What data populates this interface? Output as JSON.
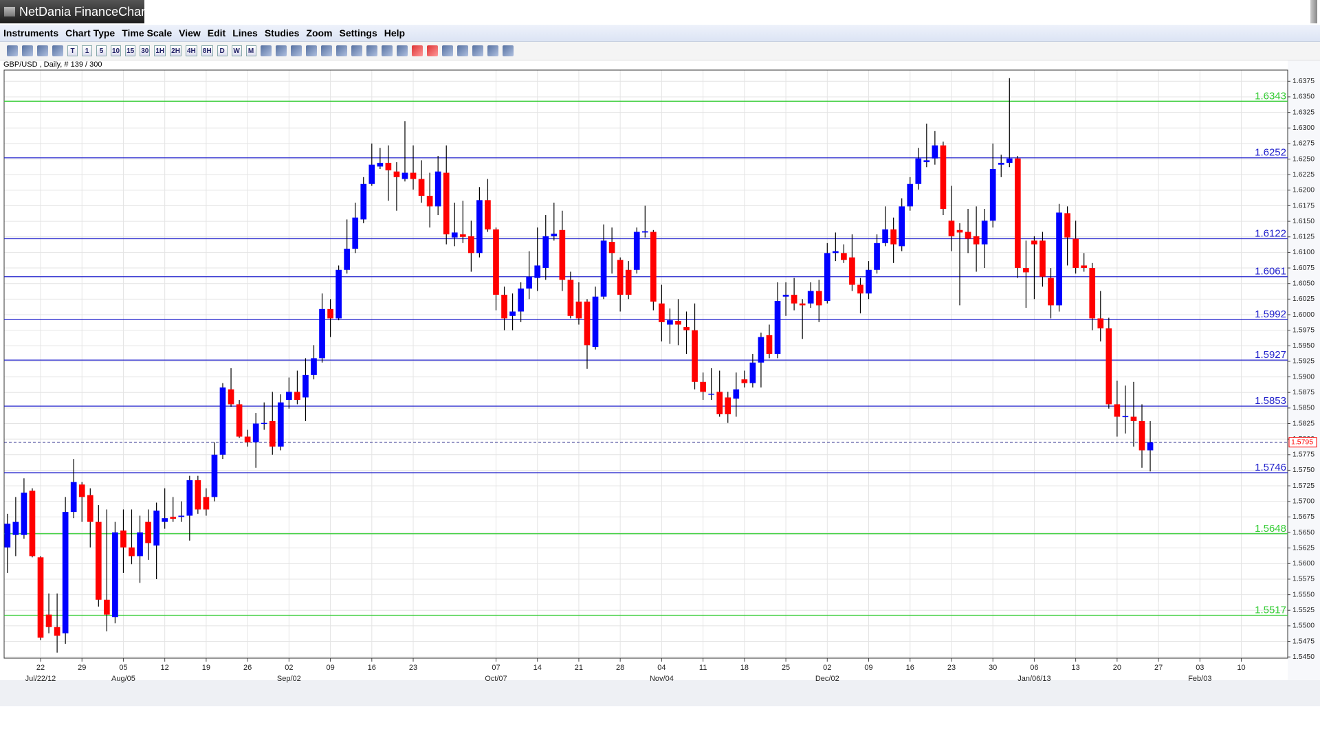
{
  "window": {
    "title": "NetDania FinanceChar"
  },
  "menu": [
    "Instruments",
    "Chart Type",
    "Time Scale",
    "View",
    "Edit",
    "Lines",
    "Studies",
    "Zoom",
    "Settings",
    "Help"
  ],
  "toolbar": [
    "T",
    "1",
    "5",
    "10",
    "15",
    "30",
    "1H",
    "2H",
    "4H",
    "8H",
    "D",
    "W",
    "M"
  ],
  "chart_data": {
    "type": "candlestick",
    "subtitle": "GBP/USD , Daily, # 139 / 300",
    "up_color": "#0000ff",
    "down_color": "#ff0000",
    "grid": true,
    "xlim": [
      -0.4,
      154.6
    ],
    "ylim": [
      1.5448,
      1.6393
    ],
    "xticks": [
      {
        "value": 4,
        "label": "22"
      },
      {
        "value": 9,
        "label": "29"
      },
      {
        "value": 14,
        "label": "05"
      },
      {
        "value": 19,
        "label": "12"
      },
      {
        "value": 24,
        "label": "19"
      },
      {
        "value": 29,
        "label": "26"
      },
      {
        "value": 34,
        "label": "02"
      },
      {
        "value": 39,
        "label": "09"
      },
      {
        "value": 44,
        "label": "16"
      },
      {
        "value": 49,
        "label": "23"
      },
      {
        "value": 59,
        "label": "07"
      },
      {
        "value": 64,
        "label": "14"
      },
      {
        "value": 69,
        "label": "21"
      },
      {
        "value": 74,
        "label": "28"
      },
      {
        "value": 79,
        "label": "04"
      },
      {
        "value": 84,
        "label": "11"
      },
      {
        "value": 89,
        "label": "18"
      },
      {
        "value": 94,
        "label": "25"
      },
      {
        "value": 99,
        "label": "02"
      },
      {
        "value": 104,
        "label": "09"
      },
      {
        "value": 109,
        "label": "16"
      },
      {
        "value": 114,
        "label": "23"
      },
      {
        "value": 119,
        "label": "30"
      },
      {
        "value": 124,
        "label": "06"
      },
      {
        "value": 129,
        "label": "13"
      },
      {
        "value": 134,
        "label": "20"
      },
      {
        "value": 139,
        "label": "27"
      },
      {
        "value": 144,
        "label": "03"
      },
      {
        "value": 149,
        "label": "10"
      }
    ],
    "xticks_month": [
      {
        "value": 4,
        "label": "Jul/22/12"
      },
      {
        "value": 14,
        "label": "Aug/05"
      },
      {
        "value": 34,
        "label": "Sep/02"
      },
      {
        "value": 59,
        "label": "Oct/07"
      },
      {
        "value": 79,
        "label": "Nov/04"
      },
      {
        "value": 99,
        "label": "Dec/02"
      },
      {
        "value": 124,
        "label": "Jan/06/13"
      },
      {
        "value": 144,
        "label": "Feb/03"
      }
    ],
    "yticks": [
      1.6375,
      {
        "value": 1.635,
        "label": "1.6350"
      },
      1.6325,
      {
        "value": 1.63,
        "label": "1.6300"
      },
      1.6275,
      {
        "value": 1.625,
        "label": "1.6250"
      },
      1.6225,
      {
        "value": 1.62,
        "label": "1.6200"
      },
      1.6175,
      {
        "value": 1.615,
        "label": "1.6150"
      },
      1.6125,
      {
        "value": 1.61,
        "label": "1.6100"
      },
      1.6075,
      {
        "value": 1.605,
        "label": "1.6050"
      },
      1.6025,
      {
        "value": 1.6,
        "label": "1.6000"
      },
      1.5975,
      {
        "value": 1.595,
        "label": "1.5950"
      },
      1.5925,
      {
        "value": 1.59,
        "label": "1.5900"
      },
      1.5875,
      {
        "value": 1.585,
        "label": "1.5850"
      },
      1.5825,
      {
        "value": 1.58,
        "label": "1.5800"
      },
      1.5775,
      {
        "value": 1.575,
        "label": "1.5750"
      },
      1.5725,
      {
        "value": 1.57,
        "label": "1.5700"
      },
      1.5675,
      {
        "value": 1.565,
        "label": "1.5650"
      },
      1.5625,
      {
        "value": 1.56,
        "label": "1.5600"
      },
      1.5575,
      {
        "value": 1.555,
        "label": "1.5550"
      },
      1.5525,
      {
        "value": 1.55,
        "label": "1.5500"
      },
      1.5475,
      {
        "value": 1.545,
        "label": "1.5450"
      }
    ],
    "levels": [
      {
        "value": 1.6343,
        "color": "#33cc33"
      },
      {
        "value": 1.6252,
        "color": "#2222cc"
      },
      {
        "value": 1.6122,
        "color": "#2222cc"
      },
      {
        "value": 1.6061,
        "color": "#2222cc"
      },
      {
        "value": 1.5992,
        "color": "#2222cc"
      },
      {
        "value": 1.5927,
        "color": "#2222cc"
      },
      {
        "value": 1.5853,
        "color": "#2222cc"
      },
      {
        "value": 1.5746,
        "color": "#2222cc"
      },
      {
        "value": 1.5648,
        "color": "#33cc33"
      },
      {
        "value": 1.5517,
        "color": "#33cc33"
      }
    ],
    "last": 1.5795,
    "last_color": "#ff0000",
    "open": [
      1.5626,
      1.5646,
      1.5646,
      1.5717,
      1.561,
      1.5518,
      1.5498,
      1.5488,
      1.5683,
      1.5727,
      1.571,
      1.5667,
      1.5542,
      1.5514,
      1.5653,
      1.5626,
      1.5612,
      1.5667,
      1.5629,
      1.5667,
      1.5675,
      1.5675,
      1.5677,
      1.5734,
      1.5707,
      1.5707,
      1.5775,
      1.588,
      1.5856,
      1.5804,
      1.5795,
      1.5825,
      1.5829,
      1.5788,
      1.5863,
      1.5876,
      1.5867,
      1.5903,
      1.593,
      1.6009,
      1.5994,
      1.6072,
      1.6106,
      1.6153,
      1.621,
      1.6238,
      1.6244,
      1.623,
      1.6218,
      1.6228,
      1.6218,
      1.6191,
      1.6174,
      1.6228,
      1.6124,
      1.6129,
      1.6126,
      1.6099,
      1.6184,
      1.6137,
      1.6032,
      1.5998,
      1.6005,
      1.6042,
      1.6059,
      1.6075,
      1.6126,
      1.6136,
      1.6056,
      1.6021,
      1.6021,
      1.5948,
      1.6029,
      1.6117,
      1.6088,
      1.6072,
      1.6072,
      1.6132,
      1.6133,
      1.6018,
      1.5984,
      1.599,
      1.598,
      1.5975,
      1.5892,
      1.5872,
      1.5876,
      1.5867,
      1.5865,
      1.5896,
      1.589,
      1.5923,
      1.5967,
      1.5937,
      1.6029,
      1.6032,
      1.6018,
      1.6018,
      1.6038,
      1.6022,
      1.6099,
      1.6099,
      1.6092,
      1.6048,
      1.6034,
      1.6072,
      1.6115,
      1.6137,
      1.611,
      1.6174,
      1.621,
      1.6245,
      1.6251,
      1.6272,
      1.6151,
      1.6136,
      1.6133,
      1.6126,
      1.6113,
      1.6151,
      1.6241,
      1.6244,
      1.6251,
      1.6075,
      1.6119,
      1.6119,
      1.6059,
      1.6015,
      1.6163,
      1.6122,
      1.6079,
      1.6075,
      1.5994,
      1.5978,
      1.5856,
      1.5836,
      1.5836,
      1.5829,
      1.5782
    ],
    "high": [
      1.568,
      1.5707,
      1.5737,
      1.5721,
      1.5612,
      1.5552,
      1.5552,
      1.5707,
      1.5768,
      1.5731,
      1.5721,
      1.5694,
      1.5687,
      1.5667,
      1.5687,
      1.5687,
      1.5677,
      1.5687,
      1.5698,
      1.5721,
      1.5707,
      1.57,
      1.5741,
      1.5741,
      1.5721,
      1.5795,
      1.589,
      1.5914,
      1.5863,
      1.5815,
      1.5842,
      1.5859,
      1.5876,
      1.5872,
      1.5899,
      1.591,
      1.593,
      1.5951,
      1.6034,
      1.6025,
      1.6079,
      1.6153,
      1.618,
      1.6221,
      1.6275,
      1.6268,
      1.6272,
      1.6245,
      1.6311,
      1.6272,
      1.6248,
      1.6228,
      1.6255,
      1.6272,
      1.618,
      1.6183,
      1.6151,
      1.6205,
      1.6218,
      1.614,
      1.6045,
      1.6034,
      1.6052,
      1.6102,
      1.614,
      1.616,
      1.618,
      1.6167,
      1.6069,
      1.6052,
      1.6025,
      1.6045,
      1.6145,
      1.614,
      1.6092,
      1.6086,
      1.614,
      1.6175,
      1.6136,
      1.6048,
      1.601,
      1.6025,
      1.6005,
      1.6018,
      1.5907,
      1.5914,
      1.591,
      1.5876,
      1.5907,
      1.591,
      1.5937,
      1.5971,
      1.5984,
      1.6052,
      1.6052,
      1.6059,
      1.6025,
      1.6052,
      1.6056,
      1.6115,
      1.6132,
      1.6113,
      1.6129,
      1.6059,
      1.6086,
      1.6129,
      1.6174,
      1.6156,
      1.6187,
      1.6221,
      1.6268,
      1.6307,
      1.6295,
      1.6278,
      1.6207,
      1.6147,
      1.617,
      1.6174,
      1.617,
      1.6275,
      1.6257,
      1.638,
      1.6255,
      1.6119,
      1.6126,
      1.6133,
      1.6075,
      1.6178,
      1.6174,
      1.6151,
      1.6099,
      1.6083,
      1.6038,
      1.5995,
      1.5894,
      1.5886,
      1.5892,
      1.5856,
      1.5829
    ],
    "low": [
      1.5585,
      1.5612,
      1.564,
      1.561,
      1.5477,
      1.5488,
      1.5457,
      1.5471,
      1.5673,
      1.5667,
      1.5626,
      1.5531,
      1.5491,
      1.5504,
      1.5585,
      1.5599,
      1.5569,
      1.5606,
      1.5575,
      1.5656,
      1.5667,
      1.5667,
      1.5637,
      1.568,
      1.5677,
      1.57,
      1.5768,
      1.5852,
      1.5802,
      1.5788,
      1.5754,
      1.5815,
      1.5775,
      1.5782,
      1.5849,
      1.5856,
      1.5829,
      1.5896,
      1.5923,
      1.5964,
      1.5991,
      1.6066,
      1.6099,
      1.6147,
      1.6207,
      1.6234,
      1.6183,
      1.6167,
      1.6214,
      1.6201,
      1.618,
      1.614,
      1.616,
      1.6113,
      1.611,
      1.6115,
      1.6069,
      1.6092,
      1.6133,
      1.6007,
      1.5975,
      1.5975,
      1.5988,
      1.6025,
      1.6038,
      1.6056,
      1.6119,
      1.6038,
      1.5994,
      1.5984,
      1.5913,
      1.5944,
      1.6025,
      1.6066,
      1.6005,
      1.6025,
      1.6066,
      1.6124,
      1.6007,
      1.5957,
      1.5953,
      1.5951,
      1.5937,
      1.588,
      1.5863,
      1.5863,
      1.5836,
      1.5826,
      1.5836,
      1.5883,
      1.5883,
      1.5883,
      1.593,
      1.593,
      1.5998,
      1.6007,
      1.5961,
      1.6011,
      1.5988,
      1.6018,
      1.6086,
      1.6083,
      1.6038,
      1.6002,
      1.6025,
      1.6066,
      1.611,
      1.6083,
      1.6102,
      1.6167,
      1.6201,
      1.6237,
      1.6241,
      1.616,
      1.6102,
      1.6015,
      1.6099,
      1.6069,
      1.6075,
      1.614,
      1.6221,
      1.6237,
      1.6059,
      1.6011,
      1.6025,
      1.6045,
      1.5994,
      1.6005,
      1.6079,
      1.6066,
      1.6069,
      1.5975,
      1.5957,
      1.5849,
      1.5804,
      1.5809,
      1.5788,
      1.5754,
      1.5748
    ],
    "close": [
      1.5664,
      1.5667,
      1.5714,
      1.5612,
      1.5481,
      1.5498,
      1.5484,
      1.5683,
      1.5731,
      1.5707,
      1.5667,
      1.5542,
      1.5518,
      1.565,
      1.5626,
      1.5612,
      1.565,
      1.5633,
      1.5685,
      1.5673,
      1.5672,
      1.5677,
      1.5734,
      1.5687,
      1.5687,
      1.5775,
      1.5883,
      1.5856,
      1.5804,
      1.5795,
      1.5825,
      1.5826,
      1.5788,
      1.5859,
      1.5876,
      1.5863,
      1.5903,
      1.593,
      1.6009,
      1.5994,
      1.6072,
      1.6106,
      1.6156,
      1.621,
      1.6241,
      1.6244,
      1.6232,
      1.6221,
      1.6228,
      1.6218,
      1.6191,
      1.6174,
      1.623,
      1.6129,
      1.6132,
      1.6125,
      1.6099,
      1.6184,
      1.6137,
      1.6032,
      1.5994,
      1.6005,
      1.6042,
      1.6061,
      1.6079,
      1.6126,
      1.613,
      1.6056,
      1.5998,
      1.5994,
      1.5951,
      1.6029,
      1.6119,
      1.6099,
      1.6032,
      1.6032,
      1.6133,
      1.6134,
      1.6021,
      1.5988,
      1.5991,
      1.5984,
      1.5975,
      1.5892,
      1.5876,
      1.5873,
      1.584,
      1.584,
      1.588,
      1.589,
      1.5923,
      1.5964,
      1.5937,
      1.6022,
      1.6032,
      1.6018,
      1.6015,
      1.6038,
      1.6015,
      1.6099,
      1.6102,
      1.6088,
      1.6048,
      1.6034,
      1.6072,
      1.6115,
      1.6137,
      1.6113,
      1.6174,
      1.621,
      1.6251,
      1.6248,
      1.6272,
      1.617,
      1.6126,
      1.6132,
      1.6122,
      1.6113,
      1.6151,
      1.6234,
      1.6244,
      1.6251,
      1.6075,
      1.6068,
      1.6113,
      1.6061,
      1.6015,
      1.6164,
      1.6124,
      1.6075,
      1.6075,
      1.5994,
      1.5978,
      1.5856,
      1.5836,
      1.5837,
      1.5829,
      1.5782,
      1.5795
    ]
  }
}
